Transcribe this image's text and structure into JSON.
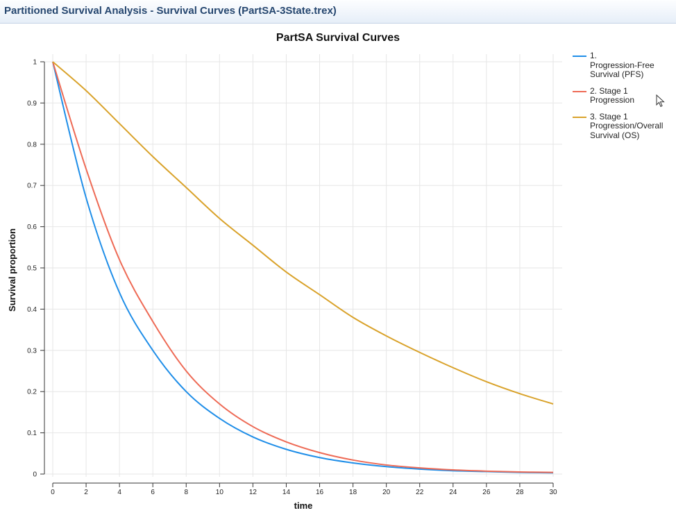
{
  "window": {
    "title": "Partitioned Survival Analysis - Survival Curves (PartSA-3State.trex)"
  },
  "chart_data": {
    "type": "line",
    "title": "PartSA Survival Curves",
    "xlabel": "time",
    "ylabel": "Survival proportion",
    "xlim": [
      0,
      30
    ],
    "ylim": [
      0,
      1
    ],
    "x_ticks": [
      0,
      2,
      4,
      6,
      8,
      10,
      12,
      14,
      16,
      18,
      20,
      22,
      24,
      26,
      28,
      30
    ],
    "y_ticks": [
      0,
      0.1,
      0.2,
      0.3,
      0.4,
      0.5,
      0.6,
      0.7,
      0.8,
      0.9,
      1
    ],
    "grid": true,
    "legend_position": "right",
    "x": [
      0,
      2,
      4,
      6,
      8,
      10,
      12,
      14,
      16,
      18,
      20,
      22,
      24,
      26,
      28,
      30
    ],
    "series": [
      {
        "name": "1. Progression-Free Survival (PFS)",
        "color": "#1f8ee8",
        "values": [
          1.0,
          0.67,
          0.44,
          0.3,
          0.2,
          0.135,
          0.09,
          0.06,
          0.04,
          0.027,
          0.018,
          0.012,
          0.008,
          0.006,
          0.004,
          0.003
        ]
      },
      {
        "name": "2. Stage 1 Progression",
        "color": "#ee6a55",
        "values": [
          1.0,
          0.74,
          0.52,
          0.37,
          0.25,
          0.17,
          0.115,
          0.078,
          0.052,
          0.034,
          0.022,
          0.015,
          0.01,
          0.007,
          0.005,
          0.004
        ]
      },
      {
        "name": "3. Stage 1 Progression/Overall Survival (OS)",
        "color": "#d9a22a",
        "values": [
          1.0,
          0.93,
          0.85,
          0.77,
          0.695,
          0.62,
          0.555,
          0.49,
          0.435,
          0.38,
          0.335,
          0.295,
          0.258,
          0.224,
          0.195,
          0.17
        ]
      }
    ]
  },
  "legend": {
    "items": [
      {
        "lines": [
          "1.",
          "Progression-Free",
          "Survival (PFS)"
        ],
        "color": "#1f8ee8"
      },
      {
        "lines": [
          "2. Stage 1",
          "Progression"
        ],
        "color": "#ee6a55"
      },
      {
        "lines": [
          "3. Stage 1",
          "Progression/Overall",
          "Survival (OS)"
        ],
        "color": "#d9a22a"
      }
    ]
  }
}
